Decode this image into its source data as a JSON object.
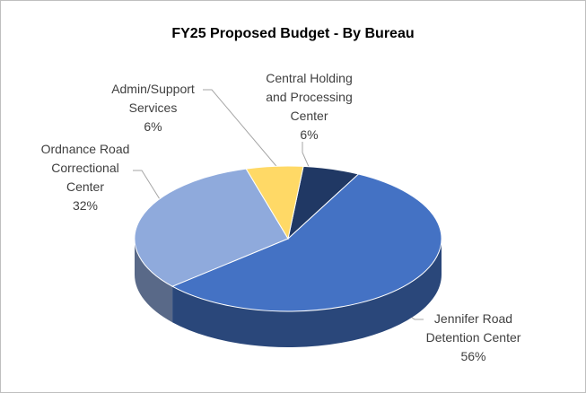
{
  "chart_data": {
    "type": "pie3d",
    "title": "FY25 Proposed Budget - By Bureau",
    "categories": [
      "Central Holding and Processing Center",
      "Jennifer Road Detention Center",
      "Ordnance Road Correctional Center",
      "Admin/Support Services"
    ],
    "values": [
      6,
      56,
      32,
      6
    ],
    "value_labels": [
      "6%",
      "56%",
      "32%",
      "6%"
    ],
    "colors": [
      "#203864",
      "#4472c4",
      "#8faadc",
      "#ffd966"
    ]
  }
}
